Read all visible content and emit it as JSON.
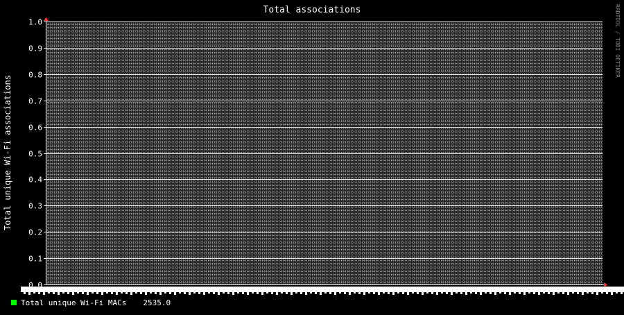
{
  "chart_data": {
    "type": "line",
    "title": "Total associations",
    "ylabel": "Total unique Wi-Fi associations",
    "xlabel": "",
    "ylim": [
      0.0,
      1.0
    ],
    "yticks": [
      "0.0",
      "0.1",
      "0.2",
      "0.3",
      "0.4",
      "0.5",
      "0.6",
      "0.7",
      "0.8",
      "0.9",
      "1.0"
    ],
    "grid": true,
    "x_tick_labels_legible": false,
    "series": [
      {
        "name": "Total unique Wi-Fi MACs",
        "color": "#00ff00",
        "summary_value": "2535.0"
      }
    ],
    "watermark": "RRDTOOL / TOBI OETIKER",
    "colors": {
      "background": "#000000",
      "canvas": "#2a2a2a",
      "grid_minor": "#d8d8d8",
      "grid_major": "#ffffff",
      "text": "#ffffff",
      "arrow": "#ff3030",
      "watermark": "#808080"
    }
  }
}
